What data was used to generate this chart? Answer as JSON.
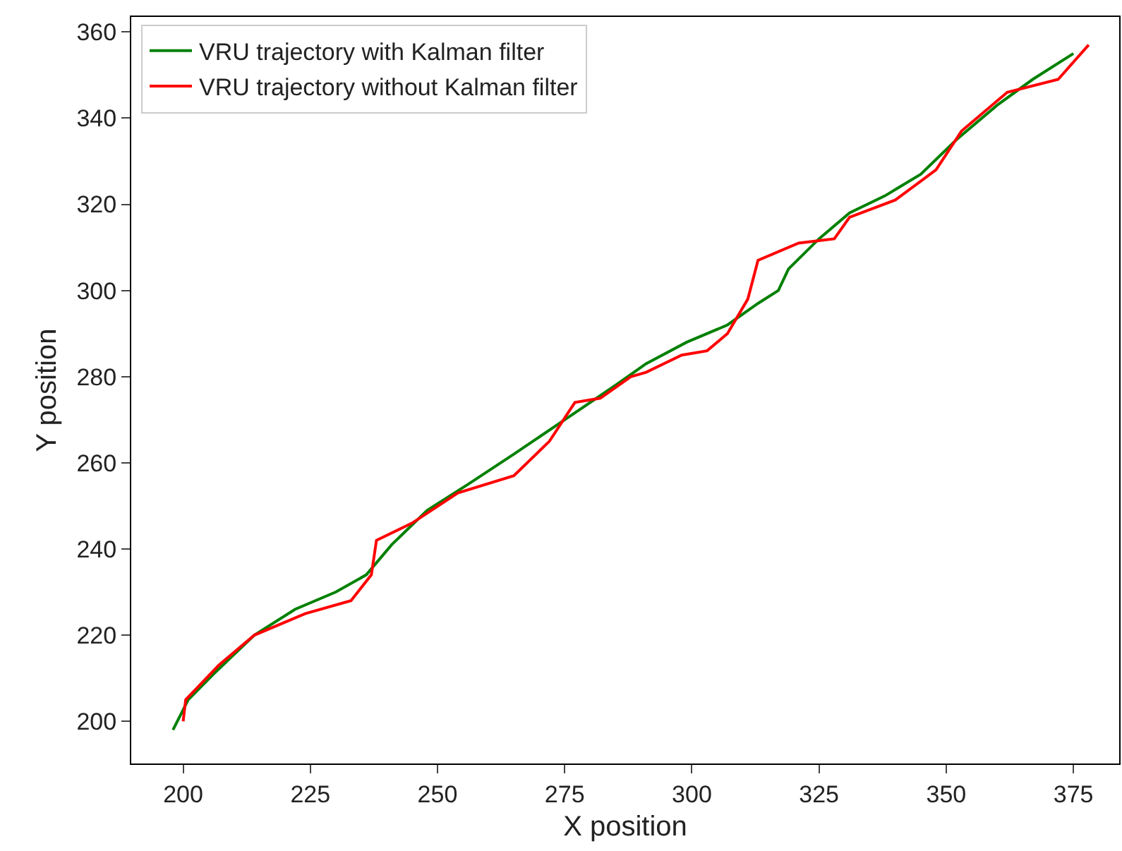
{
  "chart_data": {
    "type": "line",
    "xlabel": "X position",
    "ylabel": "Y position",
    "xlim": [
      189.8,
      384
    ],
    "ylim": [
      190.2,
      363.5
    ],
    "xticks": [
      200,
      225,
      250,
      275,
      300,
      325,
      350,
      375
    ],
    "yticks": [
      200,
      220,
      240,
      260,
      280,
      300,
      320,
      340,
      360
    ],
    "grid": false,
    "legend": "top left",
    "series": [
      {
        "name": "VRU trajectory with Kalman filter",
        "color": "#008000",
        "x": [
          198,
          201,
          206,
          214,
          222,
          230,
          236,
          241,
          248,
          256,
          265,
          275,
          285,
          291,
          299,
          307,
          313,
          317,
          319,
          325,
          331,
          338,
          345,
          352,
          360,
          367,
          375
        ],
        "values": [
          198,
          205,
          211,
          220,
          226,
          230,
          234,
          241,
          249,
          255,
          262,
          270,
          278,
          283,
          288,
          292,
          297,
          300,
          305,
          312,
          318,
          322,
          327,
          335,
          343,
          349,
          355
        ]
      },
      {
        "name": "VRU trajectory without Kalman filter",
        "color": "#ff0000",
        "x": [
          200,
          200.5,
          207,
          214,
          224,
          233,
          237,
          238,
          245,
          254,
          265,
          272,
          277,
          282,
          288,
          291,
          298,
          303,
          307,
          311,
          313,
          321,
          328,
          331,
          340,
          348,
          353,
          362,
          372,
          378
        ],
        "values": [
          200,
          205,
          213,
          220,
          225,
          228,
          234,
          242,
          246,
          253,
          257,
          265,
          274,
          275,
          280,
          281,
          285,
          286,
          290,
          298,
          307,
          311,
          312,
          317,
          321,
          328,
          337,
          346,
          349,
          357
        ]
      }
    ]
  }
}
